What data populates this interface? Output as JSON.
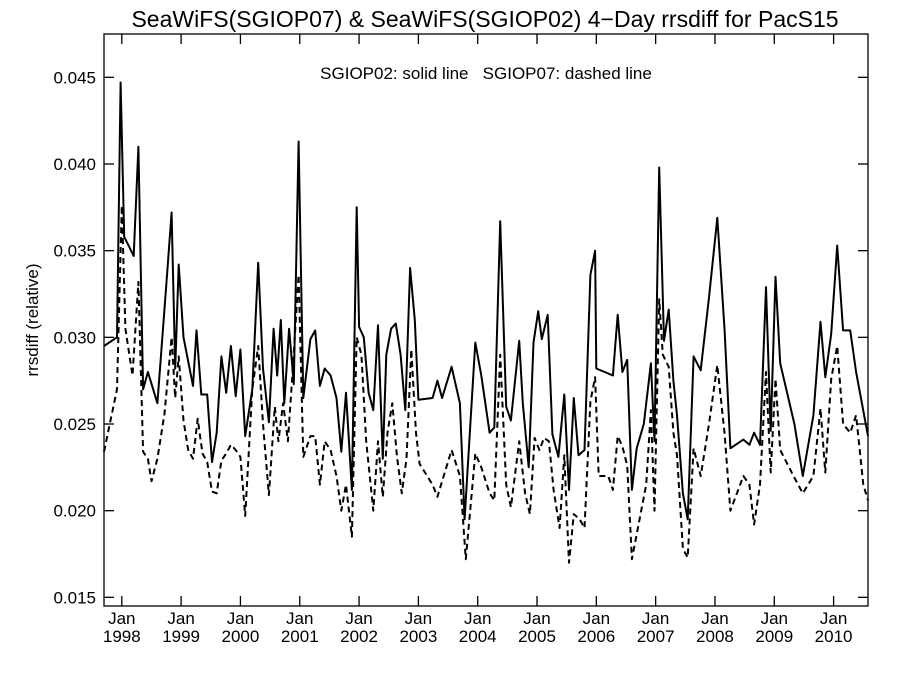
{
  "chart_data": {
    "type": "line",
    "title": "SeaWiFS(SGIOP07) & SeaWiFS(SGIOP02) 4−Day rrsdiff for PacS15",
    "ylabel": "rrsdiff (relative)",
    "xlabel": "",
    "annotation": "SGIOP02: solid line   SGIOP07: dashed line",
    "ylim": [
      0.0145,
      0.0475
    ],
    "xlim": [
      1997.7,
      2010.58
    ],
    "y_ticks": [
      "0.015",
      "0.020",
      "0.025",
      "0.030",
      "0.035",
      "0.040",
      "0.045"
    ],
    "x_ticks": [
      {
        "month": "Jan",
        "year": "1998"
      },
      {
        "month": "Jan",
        "year": "1999"
      },
      {
        "month": "Jan",
        "year": "2000"
      },
      {
        "month": "Jan",
        "year": "2001"
      },
      {
        "month": "Jan",
        "year": "2002"
      },
      {
        "month": "Jan",
        "year": "2003"
      },
      {
        "month": "Jan",
        "year": "2004"
      },
      {
        "month": "Jan",
        "year": "2005"
      },
      {
        "month": "Jan",
        "year": "2006"
      },
      {
        "month": "Jan",
        "year": "2007"
      },
      {
        "month": "Jan",
        "year": "2008"
      },
      {
        "month": "Jan",
        "year": "2009"
      },
      {
        "month": "Jan",
        "year": "2010"
      }
    ],
    "series": [
      {
        "name": "SGIOP02",
        "style": "solid",
        "points": [
          [
            1997.7,
            0.0295
          ],
          [
            1997.92,
            0.03
          ],
          [
            1997.98,
            0.0447
          ],
          [
            1998.04,
            0.0358
          ],
          [
            1998.2,
            0.0347
          ],
          [
            1998.28,
            0.041
          ],
          [
            1998.36,
            0.027
          ],
          [
            1998.44,
            0.028
          ],
          [
            1998.6,
            0.0262
          ],
          [
            1998.76,
            0.0335
          ],
          [
            1998.84,
            0.0372
          ],
          [
            1998.9,
            0.0282
          ],
          [
            1998.96,
            0.0342
          ],
          [
            1999.04,
            0.03
          ],
          [
            1999.2,
            0.0272
          ],
          [
            1999.26,
            0.0304
          ],
          [
            1999.34,
            0.0267
          ],
          [
            1999.44,
            0.0267
          ],
          [
            1999.52,
            0.0228
          ],
          [
            1999.6,
            0.0245
          ],
          [
            1999.68,
            0.0289
          ],
          [
            1999.76,
            0.0268
          ],
          [
            1999.84,
            0.0295
          ],
          [
            1999.92,
            0.0266
          ],
          [
            2000.0,
            0.0293
          ],
          [
            2000.08,
            0.0243
          ],
          [
            2000.2,
            0.027
          ],
          [
            2000.3,
            0.0343
          ],
          [
            2000.38,
            0.0282
          ],
          [
            2000.48,
            0.0251
          ],
          [
            2000.56,
            0.0305
          ],
          [
            2000.62,
            0.0278
          ],
          [
            2000.68,
            0.031
          ],
          [
            2000.74,
            0.0262
          ],
          [
            2000.82,
            0.0305
          ],
          [
            2000.9,
            0.0273
          ],
          [
            2000.98,
            0.0413
          ],
          [
            2001.06,
            0.0265
          ],
          [
            2001.18,
            0.0299
          ],
          [
            2001.26,
            0.0304
          ],
          [
            2001.34,
            0.0272
          ],
          [
            2001.42,
            0.0282
          ],
          [
            2001.52,
            0.0278
          ],
          [
            2001.62,
            0.0265
          ],
          [
            2001.7,
            0.0234
          ],
          [
            2001.78,
            0.0268
          ],
          [
            2001.88,
            0.0212
          ],
          [
            2001.96,
            0.0375
          ],
          [
            2002.0,
            0.0306
          ],
          [
            2002.08,
            0.03
          ],
          [
            2002.16,
            0.0268
          ],
          [
            2002.24,
            0.0258
          ],
          [
            2002.32,
            0.0307
          ],
          [
            2002.4,
            0.023
          ],
          [
            2002.46,
            0.029
          ],
          [
            2002.54,
            0.0305
          ],
          [
            2002.62,
            0.0308
          ],
          [
            2002.7,
            0.029
          ],
          [
            2002.78,
            0.0258
          ],
          [
            2002.86,
            0.034
          ],
          [
            2002.94,
            0.031
          ],
          [
            2003.0,
            0.0264
          ],
          [
            2003.24,
            0.0265
          ],
          [
            2003.32,
            0.0275
          ],
          [
            2003.4,
            0.0265
          ],
          [
            2003.56,
            0.0283
          ],
          [
            2003.7,
            0.0262
          ],
          [
            2003.78,
            0.0195
          ],
          [
            2003.96,
            0.0297
          ],
          [
            2004.06,
            0.0278
          ],
          [
            2004.2,
            0.0245
          ],
          [
            2004.28,
            0.0248
          ],
          [
            2004.38,
            0.0367
          ],
          [
            2004.48,
            0.026
          ],
          [
            2004.56,
            0.0252
          ],
          [
            2004.7,
            0.0298
          ],
          [
            2004.76,
            0.0262
          ],
          [
            2004.86,
            0.0225
          ],
          [
            2004.94,
            0.0297
          ],
          [
            2005.02,
            0.0315
          ],
          [
            2005.08,
            0.0299
          ],
          [
            2005.18,
            0.0313
          ],
          [
            2005.26,
            0.0244
          ],
          [
            2005.36,
            0.0231
          ],
          [
            2005.46,
            0.0267
          ],
          [
            2005.54,
            0.0212
          ],
          [
            2005.62,
            0.0265
          ],
          [
            2005.7,
            0.0232
          ],
          [
            2005.8,
            0.0235
          ],
          [
            2005.9,
            0.0336
          ],
          [
            2005.98,
            0.035
          ],
          [
            2006.0,
            0.0282
          ],
          [
            2006.28,
            0.0278
          ],
          [
            2006.36,
            0.0313
          ],
          [
            2006.44,
            0.028
          ],
          [
            2006.52,
            0.0287
          ],
          [
            2006.6,
            0.0212
          ],
          [
            2006.68,
            0.0236
          ],
          [
            2006.8,
            0.025
          ],
          [
            2006.92,
            0.0285
          ],
          [
            2006.98,
            0.024
          ],
          [
            2007.06,
            0.0398
          ],
          [
            2007.14,
            0.0298
          ],
          [
            2007.22,
            0.0316
          ],
          [
            2007.3,
            0.0275
          ],
          [
            2007.36,
            0.0255
          ],
          [
            2007.46,
            0.021
          ],
          [
            2007.54,
            0.0195
          ],
          [
            2007.64,
            0.0289
          ],
          [
            2007.76,
            0.0281
          ],
          [
            2007.9,
            0.0323
          ],
          [
            2008.04,
            0.0369
          ],
          [
            2008.16,
            0.0305
          ],
          [
            2008.26,
            0.0236
          ],
          [
            2008.48,
            0.0241
          ],
          [
            2008.58,
            0.0238
          ],
          [
            2008.66,
            0.0245
          ],
          [
            2008.76,
            0.0238
          ],
          [
            2008.86,
            0.0329
          ],
          [
            2008.94,
            0.0246
          ],
          [
            2009.02,
            0.0335
          ],
          [
            2009.1,
            0.0285
          ],
          [
            2009.34,
            0.025
          ],
          [
            2009.48,
            0.022
          ],
          [
            2009.66,
            0.0255
          ],
          [
            2009.78,
            0.0309
          ],
          [
            2009.86,
            0.0277
          ],
          [
            2009.96,
            0.0302
          ],
          [
            2010.06,
            0.0353
          ],
          [
            2010.16,
            0.0304
          ],
          [
            2010.28,
            0.0304
          ],
          [
            2010.38,
            0.028
          ],
          [
            2010.58,
            0.0243
          ]
        ]
      },
      {
        "name": "SGIOP07",
        "style": "dashed",
        "points": [
          [
            1997.7,
            0.0234
          ],
          [
            1997.92,
            0.027
          ],
          [
            1998.0,
            0.0376
          ],
          [
            1998.06,
            0.0305
          ],
          [
            1998.18,
            0.0278
          ],
          [
            1998.28,
            0.0332
          ],
          [
            1998.36,
            0.0234
          ],
          [
            1998.44,
            0.023
          ],
          [
            1998.5,
            0.0217
          ],
          [
            1998.6,
            0.023
          ],
          [
            1998.72,
            0.0256
          ],
          [
            1998.84,
            0.03
          ],
          [
            1998.9,
            0.0265
          ],
          [
            1998.96,
            0.0289
          ],
          [
            1999.04,
            0.0252
          ],
          [
            1999.12,
            0.0235
          ],
          [
            1999.2,
            0.023
          ],
          [
            1999.28,
            0.0253
          ],
          [
            1999.36,
            0.0233
          ],
          [
            1999.44,
            0.0228
          ],
          [
            1999.52,
            0.0211
          ],
          [
            1999.6,
            0.021
          ],
          [
            1999.68,
            0.0229
          ],
          [
            1999.76,
            0.0233
          ],
          [
            1999.84,
            0.0238
          ],
          [
            1999.92,
            0.0235
          ],
          [
            2000.0,
            0.0231
          ],
          [
            2000.08,
            0.0197
          ],
          [
            2000.2,
            0.027
          ],
          [
            2000.3,
            0.0295
          ],
          [
            2000.38,
            0.025
          ],
          [
            2000.48,
            0.0209
          ],
          [
            2000.58,
            0.026
          ],
          [
            2000.64,
            0.024
          ],
          [
            2000.72,
            0.0262
          ],
          [
            2000.8,
            0.024
          ],
          [
            2000.88,
            0.028
          ],
          [
            2000.98,
            0.0336
          ],
          [
            2001.06,
            0.0231
          ],
          [
            2001.18,
            0.0243
          ],
          [
            2001.26,
            0.0243
          ],
          [
            2001.34,
            0.0215
          ],
          [
            2001.42,
            0.024
          ],
          [
            2001.52,
            0.0235
          ],
          [
            2001.62,
            0.022
          ],
          [
            2001.7,
            0.02
          ],
          [
            2001.78,
            0.0215
          ],
          [
            2001.88,
            0.0185
          ],
          [
            2001.96,
            0.03
          ],
          [
            2002.04,
            0.029
          ],
          [
            2002.12,
            0.024
          ],
          [
            2002.24,
            0.02
          ],
          [
            2002.32,
            0.024
          ],
          [
            2002.4,
            0.0208
          ],
          [
            2002.48,
            0.0245
          ],
          [
            2002.56,
            0.0262
          ],
          [
            2002.64,
            0.0231
          ],
          [
            2002.72,
            0.021
          ],
          [
            2002.8,
            0.023
          ],
          [
            2002.88,
            0.0293
          ],
          [
            2002.96,
            0.0245
          ],
          [
            2003.02,
            0.0227
          ],
          [
            2003.24,
            0.0215
          ],
          [
            2003.32,
            0.0208
          ],
          [
            2003.4,
            0.0217
          ],
          [
            2003.56,
            0.0235
          ],
          [
            2003.7,
            0.022
          ],
          [
            2003.8,
            0.0172
          ],
          [
            2003.96,
            0.0233
          ],
          [
            2004.06,
            0.0225
          ],
          [
            2004.2,
            0.021
          ],
          [
            2004.28,
            0.0206
          ],
          [
            2004.38,
            0.029
          ],
          [
            2004.48,
            0.0215
          ],
          [
            2004.56,
            0.0202
          ],
          [
            2004.7,
            0.024
          ],
          [
            2004.8,
            0.021
          ],
          [
            2004.88,
            0.0198
          ],
          [
            2004.96,
            0.0242
          ],
          [
            2005.04,
            0.0235
          ],
          [
            2005.12,
            0.0242
          ],
          [
            2005.2,
            0.024
          ],
          [
            2005.28,
            0.0212
          ],
          [
            2005.38,
            0.019
          ],
          [
            2005.46,
            0.0232
          ],
          [
            2005.54,
            0.017
          ],
          [
            2005.62,
            0.0198
          ],
          [
            2005.72,
            0.0195
          ],
          [
            2005.8,
            0.019
          ],
          [
            2005.9,
            0.0263
          ],
          [
            2005.98,
            0.0277
          ],
          [
            2006.04,
            0.022
          ],
          [
            2006.2,
            0.022
          ],
          [
            2006.28,
            0.0212
          ],
          [
            2006.36,
            0.0243
          ],
          [
            2006.44,
            0.0237
          ],
          [
            2006.52,
            0.0226
          ],
          [
            2006.6,
            0.0172
          ],
          [
            2006.7,
            0.019
          ],
          [
            2006.84,
            0.0215
          ],
          [
            2006.92,
            0.0258
          ],
          [
            2006.98,
            0.02
          ],
          [
            2007.06,
            0.0322
          ],
          [
            2007.12,
            0.029
          ],
          [
            2007.22,
            0.0283
          ],
          [
            2007.3,
            0.0245
          ],
          [
            2007.36,
            0.0232
          ],
          [
            2007.46,
            0.0178
          ],
          [
            2007.54,
            0.0173
          ],
          [
            2007.64,
            0.0236
          ],
          [
            2007.76,
            0.022
          ],
          [
            2007.9,
            0.025
          ],
          [
            2008.04,
            0.0284
          ],
          [
            2008.16,
            0.0245
          ],
          [
            2008.26,
            0.02
          ],
          [
            2008.48,
            0.022
          ],
          [
            2008.58,
            0.0215
          ],
          [
            2008.66,
            0.0192
          ],
          [
            2008.76,
            0.0215
          ],
          [
            2008.86,
            0.028
          ],
          [
            2008.94,
            0.0222
          ],
          [
            2009.02,
            0.0276
          ],
          [
            2009.1,
            0.0235
          ],
          [
            2009.34,
            0.0219
          ],
          [
            2009.48,
            0.021
          ],
          [
            2009.66,
            0.022
          ],
          [
            2009.78,
            0.0259
          ],
          [
            2009.86,
            0.0222
          ],
          [
            2009.96,
            0.0276
          ],
          [
            2010.06,
            0.0295
          ],
          [
            2010.16,
            0.025
          ],
          [
            2010.28,
            0.0245
          ],
          [
            2010.38,
            0.0255
          ],
          [
            2010.5,
            0.0215
          ],
          [
            2010.58,
            0.0206
          ]
        ]
      }
    ]
  }
}
